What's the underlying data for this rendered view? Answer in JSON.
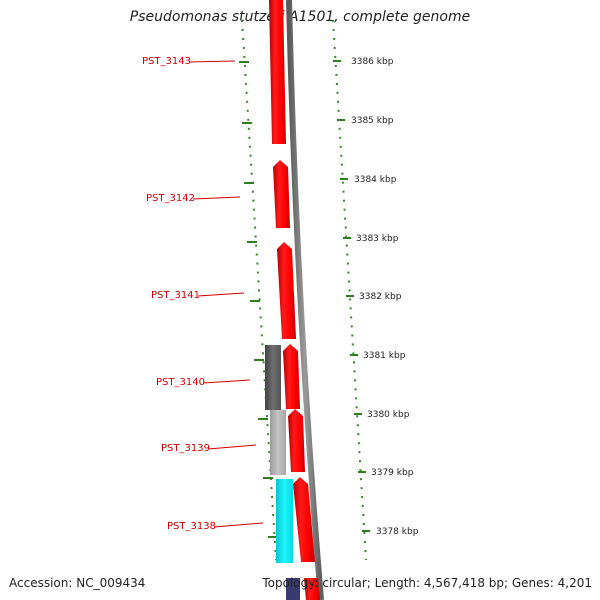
{
  "title": "Pseudomonas stutzeri A1501, complete genome",
  "genes": [
    {
      "name": "PST_3143"
    },
    {
      "name": "PST_3142"
    },
    {
      "name": "PST_3141"
    },
    {
      "name": "PST_3140"
    },
    {
      "name": "PST_3139"
    },
    {
      "name": "PST_3138"
    }
  ],
  "ticks": [
    {
      "label": "3386 kbp"
    },
    {
      "label": "3385 kbp"
    },
    {
      "label": "3384 kbp"
    },
    {
      "label": "3383 kbp"
    },
    {
      "label": "3382 kbp"
    },
    {
      "label": "3381 kbp"
    },
    {
      "label": "3380 kbp"
    },
    {
      "label": "3379 kbp"
    },
    {
      "label": "3378 kbp"
    }
  ],
  "footer": {
    "accession": "Accession: NC_009434",
    "topology": "Topology: circular; Length: 4,567,418 bp; Genes: 4,201"
  },
  "colors": {
    "gene_forward": "#ff0000",
    "gene_label": "#cc0000",
    "backbone": "#808080",
    "tick_mark": "#2e7d1e",
    "feature_dark_gray": "#666666",
    "feature_light_gray": "#bbbbbb",
    "feature_cyan": "#00e5ee"
  }
}
